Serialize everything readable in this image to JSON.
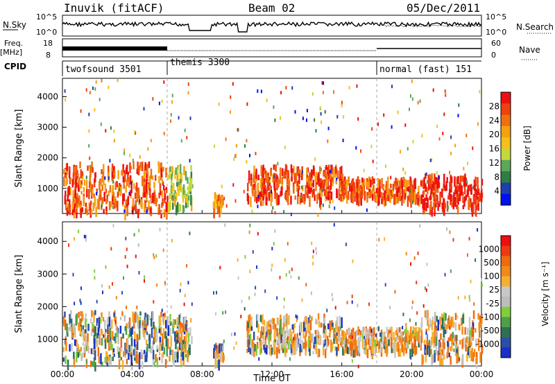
{
  "header": {
    "station": "Inuvik (fitACF)",
    "beam": "Beam 02",
    "date": "05/Dec/2011"
  },
  "params": {
    "nsky_label": "N.Sky",
    "nsky_ticks": [
      "10^5",
      "10^0"
    ],
    "nsearch_label": "N.Search",
    "nsearch_ticks": [
      "10^5",
      "10^0"
    ],
    "freq_label": "Freq.",
    "freq_unit": "[MHz]",
    "freq_ticks": [
      "18",
      "8"
    ],
    "nave_label": "Nave",
    "nave_ticks": [
      "60",
      "0"
    ],
    "cpid_label": "CPID",
    "modes": [
      {
        "label": "twofsound 3501",
        "start": 0,
        "end": 6
      },
      {
        "label": "themis 3300",
        "start": 6,
        "end": 18
      },
      {
        "label": "normal (fast) 151",
        "start": 18,
        "end": 24
      }
    ]
  },
  "chart_data": [
    {
      "type": "heatmap",
      "name": "power",
      "xlabel": "",
      "ylabel": "Slant Range [km]",
      "xlim": [
        0,
        24
      ],
      "ylim": [
        180,
        4600
      ],
      "yticks": [
        1000,
        2000,
        3000,
        4000
      ],
      "colorbar": {
        "label": "Power [dB]",
        "ticks": [
          "4",
          "8",
          "12",
          "16",
          "20",
          "24",
          "28"
        ],
        "colors": [
          "#0011ee",
          "#1f3fb0",
          "#2f7d45",
          "#5ca858",
          "#c2d93a",
          "#f2c21a",
          "#f5a012",
          "#f07010",
          "#f04010",
          "#ee1010"
        ]
      },
      "echo_regions": [
        {
          "t0": 0.0,
          "t1": 6.0,
          "r0": 300,
          "r1": 1900,
          "level": 0.8
        },
        {
          "t0": 6.0,
          "t1": 7.4,
          "r0": 400,
          "r1": 1800,
          "level": 0.45
        },
        {
          "t0": 8.6,
          "t1": 9.2,
          "r0": 350,
          "r1": 900,
          "level": 0.7
        },
        {
          "t0": 10.5,
          "t1": 16.0,
          "r0": 700,
          "r1": 1800,
          "level": 0.85
        },
        {
          "t0": 16.0,
          "t1": 20.5,
          "r0": 700,
          "r1": 1400,
          "level": 0.8
        },
        {
          "t0": 20.5,
          "t1": 24.0,
          "r0": 400,
          "r1": 1500,
          "level": 0.95
        }
      ]
    },
    {
      "type": "heatmap",
      "name": "velocity",
      "xlabel": "Time UT",
      "ylabel": "Slant Range [km]",
      "xlim": [
        0,
        24
      ],
      "ylim": [
        180,
        4600
      ],
      "yticks": [
        1000,
        2000,
        3000,
        4000
      ],
      "xticks": [
        "00:00",
        "04:00",
        "08:00",
        "12:00",
        "16:00",
        "20:00",
        "00:00"
      ],
      "colorbar": {
        "label": "Velocity [m s⁻¹]",
        "ticks": [
          "1000",
          "500",
          "100",
          "25",
          "-25",
          "-100",
          "-500",
          "-1000"
        ],
        "colors": [
          "#1a2fc8",
          "#2a4fa8",
          "#2f6f55",
          "#4f9f4a",
          "#7fcf3a",
          "#bdbdbd",
          "#c8c8c8",
          "#f5b030",
          "#f28a18",
          "#f06a10",
          "#ee3a10",
          "#ee1010"
        ]
      },
      "echo_regions": [
        {
          "t0": 0.0,
          "t1": 6.0,
          "r0": 300,
          "r1": 1900,
          "level": 0.45
        },
        {
          "t0": 6.0,
          "t1": 7.4,
          "r0": 400,
          "r1": 1800,
          "level": 0.5
        },
        {
          "t0": 8.6,
          "t1": 9.2,
          "r0": 350,
          "r1": 900,
          "level": 0.7
        },
        {
          "t0": 10.5,
          "t1": 16.0,
          "r0": 700,
          "r1": 1800,
          "level": 0.75
        },
        {
          "t0": 16.0,
          "t1": 20.5,
          "r0": 700,
          "r1": 1400,
          "level": 0.8
        },
        {
          "t0": 20.5,
          "t1": 24.0,
          "r0": 400,
          "r1": 1900,
          "level": 0.75
        }
      ]
    }
  ]
}
